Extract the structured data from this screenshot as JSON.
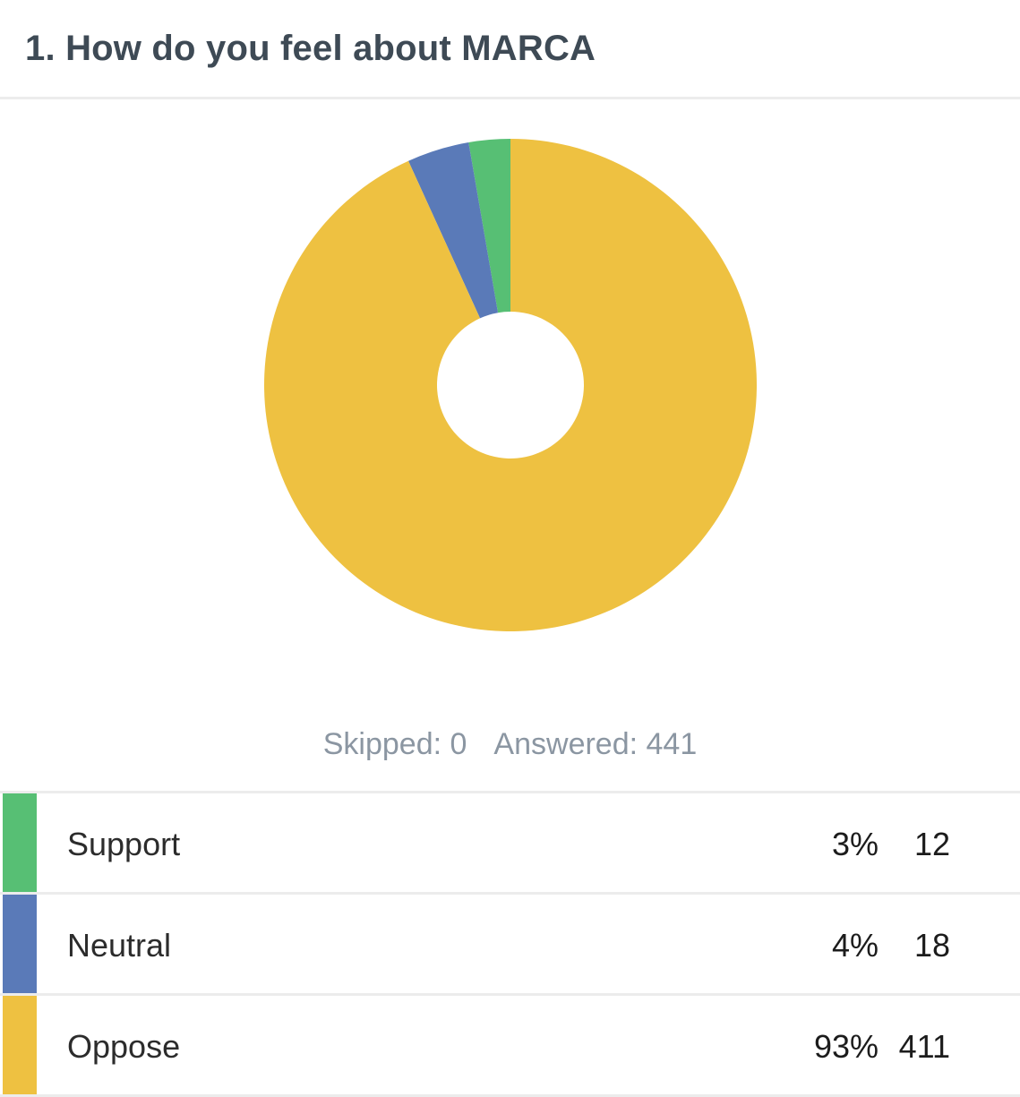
{
  "question": {
    "title": "1. How do you feel about MARCA"
  },
  "summary": {
    "skipped": "Skipped: 0",
    "answered": "Answered: 441"
  },
  "chart_data": {
    "type": "pie",
    "title": "1. How do you feel about MARCA",
    "series": [
      {
        "name": "Support",
        "value": 12,
        "percent": "3%",
        "color": "#57bf74"
      },
      {
        "name": "Neutral",
        "value": 18,
        "percent": "4%",
        "color": "#5a7ab8"
      },
      {
        "name": "Oppose",
        "value": 411,
        "percent": "93%",
        "color": "#eec141"
      }
    ],
    "total": 441
  },
  "rows": [
    {
      "label": "Support",
      "percent": "3%",
      "count": "12",
      "color": "#57bf74"
    },
    {
      "label": "Neutral",
      "percent": "4%",
      "count": "18",
      "color": "#5a7ab8"
    },
    {
      "label": "Oppose",
      "percent": "93%",
      "count": "411",
      "color": "#eec141"
    }
  ]
}
